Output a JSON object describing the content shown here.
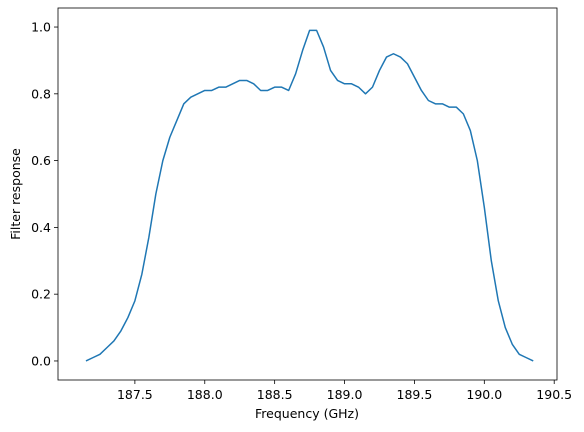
{
  "chart_data": {
    "type": "line",
    "x_label": "Frequency (GHz)",
    "y_label": "Filter response",
    "x": [
      187.15,
      187.2,
      187.25,
      187.3,
      187.35,
      187.4,
      187.45,
      187.5,
      187.55,
      187.6,
      187.65,
      187.7,
      187.75,
      187.8,
      187.85,
      187.9,
      187.95,
      188.0,
      188.05,
      188.1,
      188.15,
      188.2,
      188.25,
      188.3,
      188.35,
      188.4,
      188.45,
      188.5,
      188.55,
      188.6,
      188.65,
      188.7,
      188.75,
      188.8,
      188.85,
      188.9,
      188.95,
      189.0,
      189.05,
      189.1,
      189.15,
      189.2,
      189.25,
      189.3,
      189.35,
      189.4,
      189.45,
      189.5,
      189.55,
      189.6,
      189.65,
      189.7,
      189.75,
      189.8,
      189.85,
      189.9,
      189.95,
      190.0,
      190.05,
      190.1,
      190.15,
      190.2,
      190.25,
      190.3,
      190.35
    ],
    "series": [
      {
        "color": "#1f77b4",
        "values": [
          0.0,
          0.01,
          0.02,
          0.04,
          0.06,
          0.09,
          0.13,
          0.18,
          0.26,
          0.37,
          0.5,
          0.6,
          0.67,
          0.72,
          0.77,
          0.79,
          0.8,
          0.81,
          0.81,
          0.82,
          0.82,
          0.83,
          0.84,
          0.84,
          0.83,
          0.81,
          0.81,
          0.82,
          0.82,
          0.81,
          0.86,
          0.93,
          0.99,
          0.99,
          0.94,
          0.87,
          0.84,
          0.83,
          0.83,
          0.82,
          0.8,
          0.82,
          0.87,
          0.91,
          0.92,
          0.91,
          0.89,
          0.85,
          0.81,
          0.78,
          0.77,
          0.77,
          0.76,
          0.76,
          0.74,
          0.69,
          0.6,
          0.46,
          0.3,
          0.18,
          0.1,
          0.05,
          0.02,
          0.01,
          0.0
        ]
      }
    ],
    "xlim": [
      186.95,
      190.52
    ],
    "ylim": [
      -0.057,
      1.057
    ],
    "xticks": [
      187.5,
      {
        "value": 188,
        "label": "188.0"
      },
      188.5,
      {
        "value": 189,
        "label": "189.0"
      },
      189.5,
      {
        "value": 190,
        "label": "190.0"
      },
      190.5
    ],
    "yticks": [
      {
        "value": 0,
        "label": "0.0"
      },
      {
        "value": 0.2,
        "label": "0.2"
      },
      {
        "value": 0.4,
        "label": "0.4"
      },
      {
        "value": 0.6,
        "label": "0.6"
      },
      {
        "value": 0.8,
        "label": "0.8"
      },
      {
        "value": 1,
        "label": "1.0"
      }
    ],
    "grid": false
  }
}
